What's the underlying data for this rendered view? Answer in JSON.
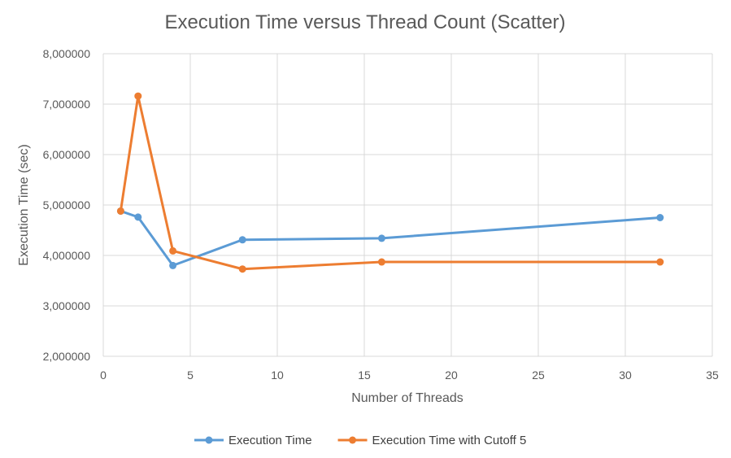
{
  "chart_data": {
    "type": "scatter",
    "title": "Execution Time versus Thread Count (Scatter)",
    "xlabel": "Number of Threads",
    "ylabel": "Execution Time (sec)",
    "xlim": [
      0,
      35
    ],
    "ylim": [
      2000000,
      8000000
    ],
    "xticks": [
      0,
      5,
      10,
      15,
      20,
      25,
      30,
      35
    ],
    "xtick_labels": [
      "0",
      "5",
      "10",
      "15",
      "20",
      "25",
      "30",
      "35"
    ],
    "yticks": [
      2000000,
      3000000,
      4000000,
      5000000,
      6000000,
      7000000,
      8000000
    ],
    "ytick_labels": [
      "2,000000",
      "3,000000",
      "4,000000",
      "5,000000",
      "6,000000",
      "7,000000",
      "8,000000"
    ],
    "grid": true,
    "legend_position": "bottom",
    "series": [
      {
        "name": "Execution Time",
        "color": "#5b9bd5",
        "x": [
          1,
          2,
          4,
          8,
          16,
          32
        ],
        "y": [
          4880000,
          4760000,
          3800000,
          4310000,
          4340000,
          4750000
        ]
      },
      {
        "name": "Execution Time with Cutoff 5",
        "color": "#ed7d31",
        "x": [
          1,
          2,
          4,
          8,
          16,
          32
        ],
        "y": [
          4880000,
          7160000,
          4090000,
          3730000,
          3870000,
          3870000
        ]
      }
    ]
  }
}
